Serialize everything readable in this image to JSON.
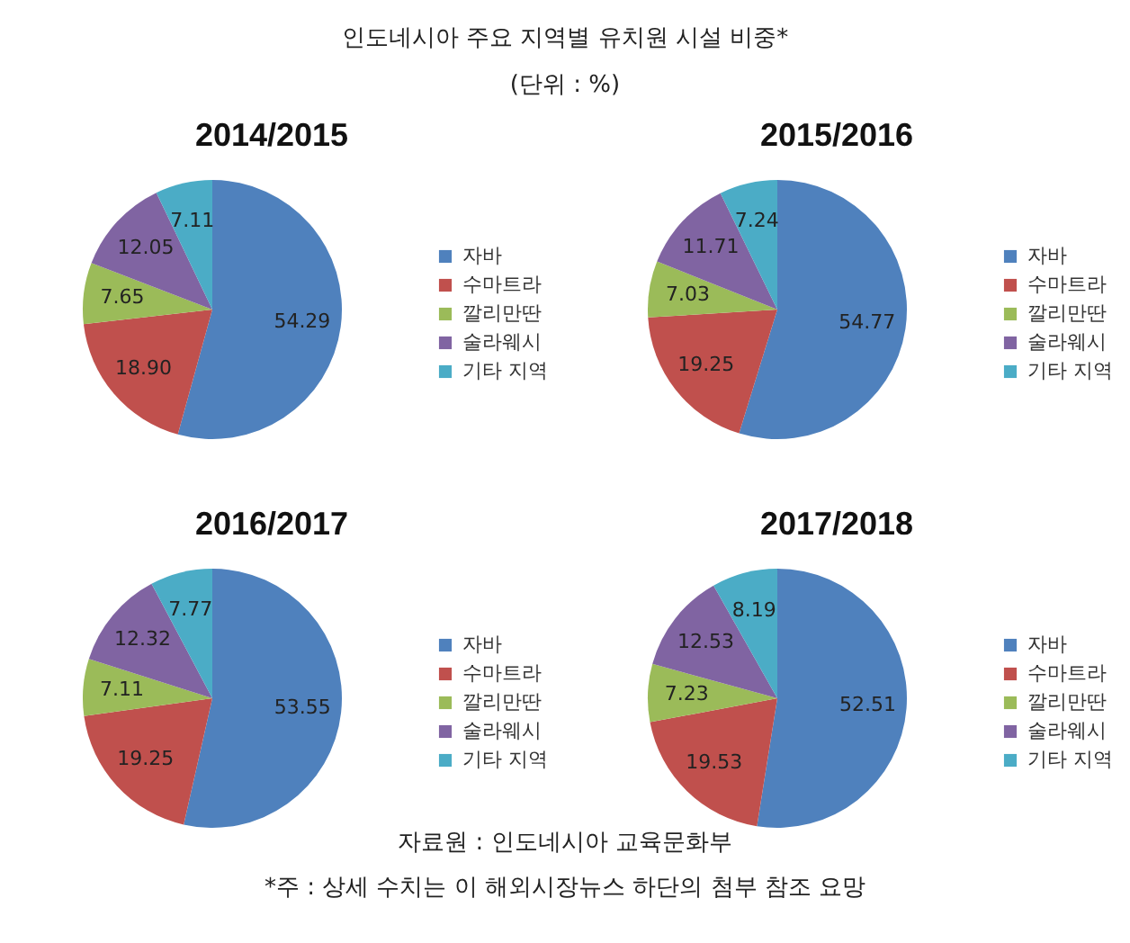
{
  "chart_data": [
    {
      "type": "pie",
      "title": "2014/2015",
      "categories": [
        "자바",
        "수마트라",
        "깔리만딴",
        "술라웨시",
        "기타 지역"
      ],
      "values": [
        54.29,
        18.9,
        7.65,
        12.05,
        7.11
      ],
      "value_labels": [
        "54.29",
        "18.90",
        "7.65",
        "12.05",
        "7.11"
      ],
      "colors": [
        "#4f81bd",
        "#c0504d",
        "#9bbb59",
        "#8064a2",
        "#4bacc6"
      ],
      "legend": "right",
      "annotations": [
        "인도네시아 주요 지역별 유치원 시설 비중*",
        "(단위 : %)"
      ]
    },
    {
      "type": "pie",
      "title": "2015/2016",
      "categories": [
        "자바",
        "수마트라",
        "깔리만딴",
        "술라웨시",
        "기타 지역"
      ],
      "values": [
        54.77,
        19.25,
        7.03,
        11.71,
        7.24
      ],
      "value_labels": [
        "54.77",
        "19.25",
        "7.03",
        "11.71",
        "7.24"
      ],
      "colors": [
        "#4f81bd",
        "#c0504d",
        "#9bbb59",
        "#8064a2",
        "#4bacc6"
      ],
      "legend": "right"
    },
    {
      "type": "pie",
      "title": "2016/2017",
      "categories": [
        "자바",
        "수마트라",
        "깔리만딴",
        "술라웨시",
        "기타 지역"
      ],
      "values": [
        53.55,
        19.25,
        7.11,
        12.32,
        7.77
      ],
      "value_labels": [
        "53.55",
        "19.25",
        "7.11",
        "12.32",
        "7.77"
      ],
      "colors": [
        "#4f81bd",
        "#c0504d",
        "#9bbb59",
        "#8064a2",
        "#4bacc6"
      ],
      "legend": "right"
    },
    {
      "type": "pie",
      "title": "2017/2018",
      "categories": [
        "자바",
        "수마트라",
        "깔리만딴",
        "술라웨시",
        "기타 지역"
      ],
      "values": [
        52.51,
        19.53,
        7.23,
        12.53,
        8.19
      ],
      "value_labels": [
        "52.51",
        "19.53",
        "7.23",
        "12.53",
        "8.19"
      ],
      "colors": [
        "#4f81bd",
        "#c0504d",
        "#9bbb59",
        "#8064a2",
        "#4bacc6"
      ],
      "legend": "right",
      "annotations": [
        "자료원 : 인도네시아 교육문화부",
        "*주 : 상세 수치는 이 해외시장뉴스 하단의 첨부 참조 요망"
      ]
    }
  ]
}
